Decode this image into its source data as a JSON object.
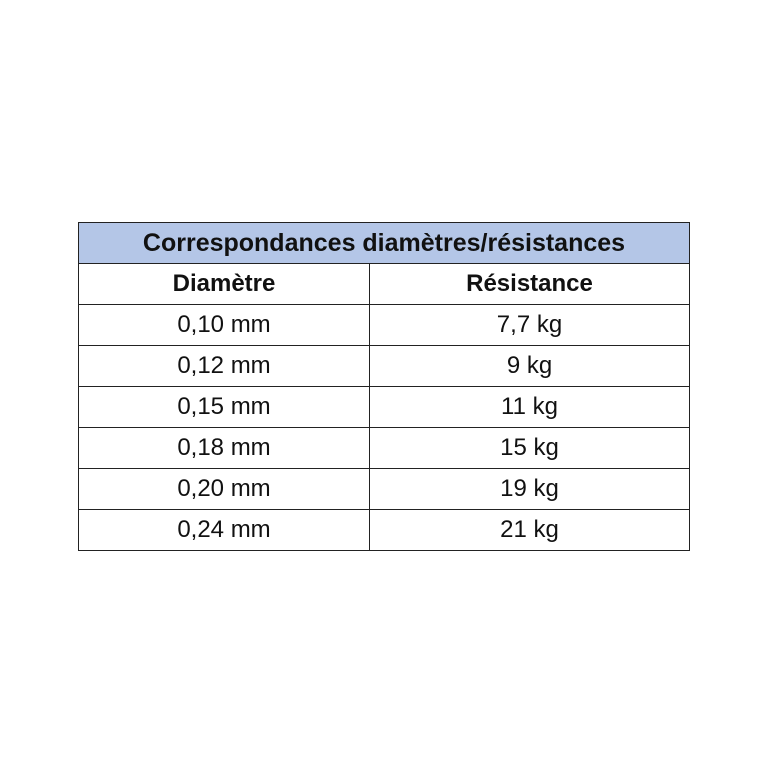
{
  "table": {
    "title": "Correspondances diamètres/résistances",
    "header_bg": "#b4c6e7",
    "columns": [
      "Diamètre",
      "Résistance"
    ],
    "rows": [
      [
        "0,10 mm",
        "7,7 kg"
      ],
      [
        "0,12 mm",
        "9 kg"
      ],
      [
        "0,15 mm",
        "11 kg"
      ],
      [
        "0,18 mm",
        "15 kg"
      ],
      [
        "0,20 mm",
        "19 kg"
      ],
      [
        "0,24 mm",
        "21 kg"
      ]
    ]
  }
}
